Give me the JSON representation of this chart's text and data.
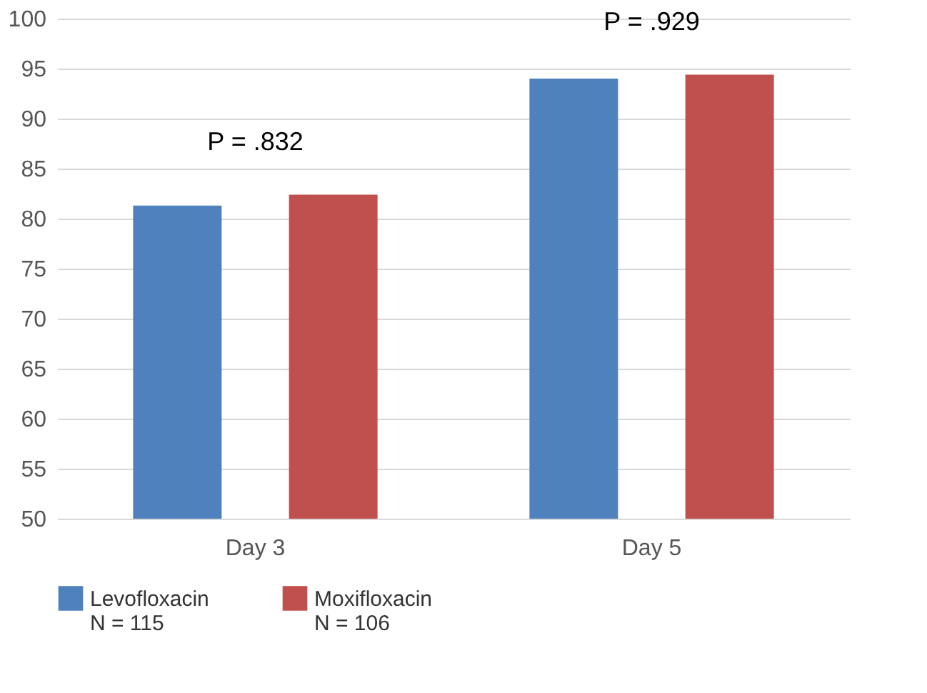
{
  "chart_data": {
    "type": "bar",
    "categories": [
      "Day 3",
      "Day 5"
    ],
    "series": [
      {
        "name": "Levofloxacin\nN = 115",
        "color": "#4f81bd",
        "values": [
          81.3,
          94.0
        ]
      },
      {
        "name": "Moxifloxacin\nN = 106",
        "color": "#c0504d",
        "values": [
          82.4,
          94.4
        ]
      }
    ],
    "ylim": [
      50,
      100
    ],
    "yticks": [
      50,
      55,
      60,
      65,
      70,
      75,
      80,
      85,
      90,
      95,
      100
    ],
    "grid": "y",
    "legend": "bottom",
    "annotations": [
      "P = .832",
      "P = .929"
    ]
  }
}
